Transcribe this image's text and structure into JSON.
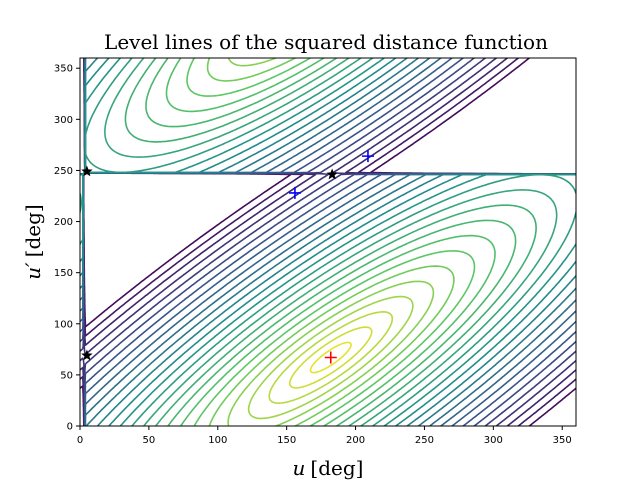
{
  "chart_data": {
    "type": "contour",
    "title": "Level lines of the squared distance function",
    "xlabel_var": "u",
    "xlabel_unit": "[deg]",
    "ylabel_var": "u′",
    "ylabel_unit": "[deg]",
    "xlim": [
      0,
      360
    ],
    "ylim": [
      0,
      360
    ],
    "xticks": [
      0,
      50,
      100,
      150,
      200,
      250,
      300,
      350
    ],
    "yticks": [
      0,
      50,
      100,
      150,
      200,
      250,
      300,
      350
    ],
    "xtick_labels": [
      "0",
      "50",
      "100",
      "150",
      "200",
      "250",
      "300",
      "350"
    ],
    "ytick_labels": [
      "0",
      "50",
      "100",
      "150",
      "200",
      "250",
      "300",
      "350"
    ],
    "colormap": [
      "#440154",
      "#3b528b",
      "#21918c",
      "#5ec962",
      "#fde725"
    ],
    "minimum": {
      "u": 182,
      "v": 67
    },
    "function_model": {
      "lambda": 0.85,
      "max_dist": 212,
      "period": 360
    },
    "levels": 26,
    "markers": [
      {
        "kind": "plus",
        "color": "#ff0000",
        "u": 182,
        "v": 67
      },
      {
        "kind": "plus",
        "color": "#0000ff",
        "u": 156,
        "v": 228
      },
      {
        "kind": "plus",
        "color": "#0000ff",
        "u": 209,
        "v": 264
      },
      {
        "kind": "star",
        "color": "#000000",
        "u": 5,
        "v": 249
      },
      {
        "kind": "star",
        "color": "#000000",
        "u": 183,
        "v": 246
      },
      {
        "kind": "star",
        "color": "#000000",
        "u": 5,
        "v": 69
      }
    ]
  }
}
